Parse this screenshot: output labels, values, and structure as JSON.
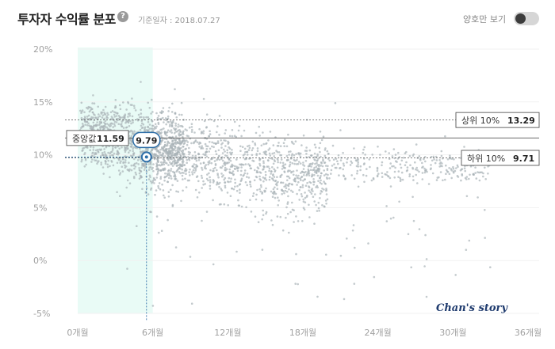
{
  "header": {
    "title": "투자자 수익률 분포",
    "help": "?",
    "base_date": "기준일자 : 2018.07.27",
    "toggle_label": "양호만 보기"
  },
  "watermark": "Chan's story",
  "chart_data": {
    "type": "scatter",
    "x_ticks": [
      "0개월",
      "6개월",
      "12개월",
      "18개월",
      "24개월",
      "30개월",
      "36개월"
    ],
    "y_ticks": [
      "20%",
      "15%",
      "10%",
      "5%",
      "0%",
      "-5%"
    ],
    "xlim": [
      0,
      36
    ],
    "ylim": [
      -5,
      20
    ],
    "highlight_range_months": [
      0,
      6
    ],
    "reference_lines": {
      "top10": {
        "label": "상위 10%",
        "value_text": "13.29",
        "value": 13.29
      },
      "median": {
        "label": "중앙값",
        "value_text": "11.59",
        "value": 11.59
      },
      "bottom10": {
        "label": "하위 10%",
        "value_text": "9.71",
        "value": 9.71
      }
    },
    "marker": {
      "x": 5.5,
      "y": 9.79,
      "label": "9.79"
    },
    "point_color": "#aab3b8",
    "highlight_color": "#e9fbf6",
    "marker_color": "#2d6ea8"
  }
}
